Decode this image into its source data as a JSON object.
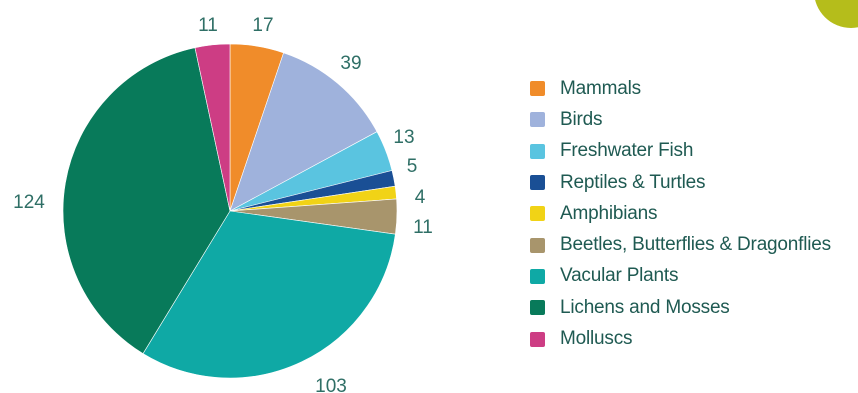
{
  "chart_data": {
    "type": "pie",
    "start_angle_deg": 0,
    "direction": "clockwise",
    "slices": [
      {
        "label": "Mammals",
        "value": 17,
        "value_label": "17",
        "color": "#f08c2a"
      },
      {
        "label": "Birds",
        "value": 39,
        "value_label": "39",
        "color": "#9fb2dc"
      },
      {
        "label": "Freshwater Fish",
        "value": 13,
        "value_label": "13",
        "color": "#5ac4e0"
      },
      {
        "label": "Reptiles & Turtles",
        "value": 5,
        "value_label": "5",
        "color": "#1a4f95"
      },
      {
        "label": "Amphibians",
        "value": 4,
        "value_label": "4",
        "color": "#f1d316"
      },
      {
        "label": "Beetles, Butterflies & Dragonflies",
        "value": 11,
        "value_label": "11",
        "color": "#a8956c"
      },
      {
        "label": "Vacular Plants",
        "value": 103,
        "value_label": "103",
        "color": "#0fa9a5"
      },
      {
        "label": "Lichens and Mosses",
        "value": 124,
        "value_label": "124",
        "color": "#087a5a"
      },
      {
        "label": "Molluscs",
        "value": 11,
        "value_label": "11",
        "color": "#cd3d84"
      }
    ],
    "legend_position": "right"
  },
  "decor": {
    "corner_circle_color": "#b5bd1b"
  }
}
